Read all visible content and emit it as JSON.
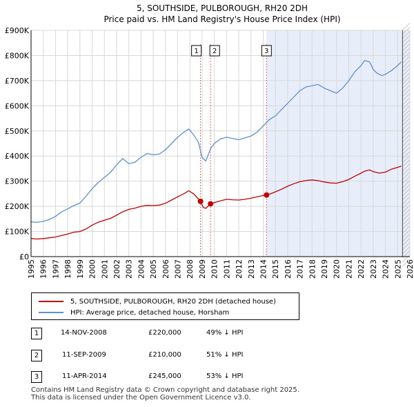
{
  "chart_data": {
    "type": "line",
    "title": "5, SOUTHSIDE, PULBOROUGH, RH20 2DH",
    "subtitle": "Price paid vs. HM Land Registry's House Price Index (HPI)",
    "x_range": [
      1995,
      2026
    ],
    "ylim": [
      0,
      900000
    ],
    "y_ticks": [
      0,
      100000,
      200000,
      300000,
      400000,
      500000,
      600000,
      700000,
      800000,
      900000
    ],
    "y_tick_labels": [
      "£0",
      "£100K",
      "£200K",
      "£300K",
      "£400K",
      "£500K",
      "£600K",
      "£700K",
      "£800K",
      "£900K"
    ],
    "x_ticks": [
      1995,
      1996,
      1997,
      1998,
      1999,
      2000,
      2001,
      2002,
      2003,
      2004,
      2005,
      2006,
      2007,
      2008,
      2009,
      2010,
      2011,
      2012,
      2013,
      2014,
      2015,
      2016,
      2017,
      2018,
      2019,
      2020,
      2021,
      2022,
      2023,
      2024,
      2025,
      2026
    ],
    "grid": true,
    "shaded_from": 2014.27,
    "data_end": 2025.4,
    "series": [
      {
        "name": "5, SOUTHSIDE, PULBOROUGH, RH20 2DH (detached house)",
        "color": "#c00000",
        "x": [
          1995.0,
          1995.5,
          1996.0,
          1996.5,
          1997.0,
          1997.5,
          1998.0,
          1998.5,
          1999.0,
          1999.5,
          2000.0,
          2000.5,
          2001.0,
          2001.5,
          2002.0,
          2002.5,
          2003.0,
          2003.5,
          2004.0,
          2004.5,
          2005.0,
          2005.5,
          2006.0,
          2006.5,
          2007.0,
          2007.5,
          2007.9,
          2008.3,
          2008.87,
          2009.1,
          2009.3,
          2009.7,
          2010.0,
          2010.5,
          2011.0,
          2011.5,
          2012.0,
          2012.5,
          2013.0,
          2013.5,
          2014.0,
          2014.27,
          2014.6,
          2015.0,
          2015.5,
          2016.0,
          2016.5,
          2017.0,
          2017.5,
          2018.0,
          2018.5,
          2019.0,
          2019.5,
          2020.0,
          2020.5,
          2021.0,
          2021.5,
          2022.0,
          2022.3,
          2022.7,
          2023.0,
          2023.5,
          2024.0,
          2024.5,
          2025.0,
          2025.3
        ],
        "values": [
          72000,
          70000,
          72000,
          75000,
          78000,
          84000,
          90000,
          97000,
          100000,
          110000,
          125000,
          137000,
          145000,
          152000,
          165000,
          178000,
          188000,
          193000,
          200000,
          204000,
          203000,
          205000,
          212000,
          225000,
          238000,
          250000,
          262000,
          250000,
          220000,
          195000,
          192000,
          210000,
          215000,
          222000,
          228000,
          226000,
          225000,
          228000,
          232000,
          238000,
          243000,
          245000,
          250000,
          258000,
          268000,
          280000,
          290000,
          298000,
          303000,
          305000,
          302000,
          297000,
          293000,
          292000,
          298000,
          307000,
          320000,
          332000,
          340000,
          345000,
          338000,
          332000,
          336000,
          348000,
          355000,
          360000
        ]
      },
      {
        "name": "HPI: Average price, detached house, Horsham",
        "color": "#5b8fd4",
        "x": [
          1995.0,
          1995.5,
          1996.0,
          1996.5,
          1997.0,
          1997.5,
          1998.0,
          1998.5,
          1999.0,
          1999.5,
          2000.0,
          2000.5,
          2001.0,
          2001.5,
          2002.0,
          2002.5,
          2003.0,
          2003.5,
          2004.0,
          2004.5,
          2005.0,
          2005.5,
          2006.0,
          2006.5,
          2007.0,
          2007.5,
          2007.9,
          2008.3,
          2008.7,
          2009.0,
          2009.3,
          2009.7,
          2010.0,
          2010.5,
          2011.0,
          2011.5,
          2012.0,
          2012.5,
          2013.0,
          2013.5,
          2014.0,
          2014.5,
          2015.0,
          2015.5,
          2016.0,
          2016.5,
          2017.0,
          2017.5,
          2018.0,
          2018.5,
          2019.0,
          2019.5,
          2020.0,
          2020.5,
          2021.0,
          2021.5,
          2022.0,
          2022.3,
          2022.7,
          2023.0,
          2023.3,
          2023.7,
          2024.0,
          2024.5,
          2025.0,
          2025.3
        ],
        "values": [
          138000,
          137000,
          140000,
          148000,
          160000,
          178000,
          190000,
          203000,
          213000,
          240000,
          270000,
          295000,
          315000,
          335000,
          365000,
          390000,
          370000,
          375000,
          395000,
          410000,
          405000,
          408000,
          425000,
          450000,
          475000,
          495000,
          508000,
          485000,
          455000,
          395000,
          380000,
          430000,
          450000,
          468000,
          475000,
          470000,
          465000,
          472000,
          480000,
          495000,
          520000,
          545000,
          560000,
          585000,
          610000,
          635000,
          660000,
          675000,
          680000,
          685000,
          670000,
          660000,
          650000,
          670000,
          700000,
          735000,
          760000,
          780000,
          775000,
          745000,
          730000,
          720000,
          725000,
          740000,
          760000,
          775000
        ]
      }
    ],
    "transactions": [
      {
        "marker": "1",
        "x": 2008.87,
        "value": 220000
      },
      {
        "marker": "2",
        "x": 2009.69,
        "value": 210000
      },
      {
        "marker": "3",
        "x": 2014.27,
        "value": 245000
      }
    ]
  },
  "legend": {
    "property": "5, SOUTHSIDE, PULBOROUGH, RH20 2DH (detached house)",
    "hpi": "HPI: Average price, detached house, Horsham"
  },
  "table": [
    {
      "num": "1",
      "date": "14-NOV-2008",
      "price": "£220,000",
      "hpi": "49% ↓ HPI"
    },
    {
      "num": "2",
      "date": "11-SEP-2009",
      "price": "£210,000",
      "hpi": "51% ↓ HPI"
    },
    {
      "num": "3",
      "date": "11-APR-2014",
      "price": "£245,000",
      "hpi": "53% ↓ HPI"
    }
  ],
  "footer": {
    "line1": "Contains HM Land Registry data © Crown copyright and database right 2025.",
    "line2": "This data is licensed under the Open Government Licence v3.0."
  },
  "colors": {
    "property": "#c00000",
    "hpi": "#5b8fd4",
    "shade": "#e8edfa",
    "grid": "#d8d8d8",
    "vline": "#e06666"
  }
}
